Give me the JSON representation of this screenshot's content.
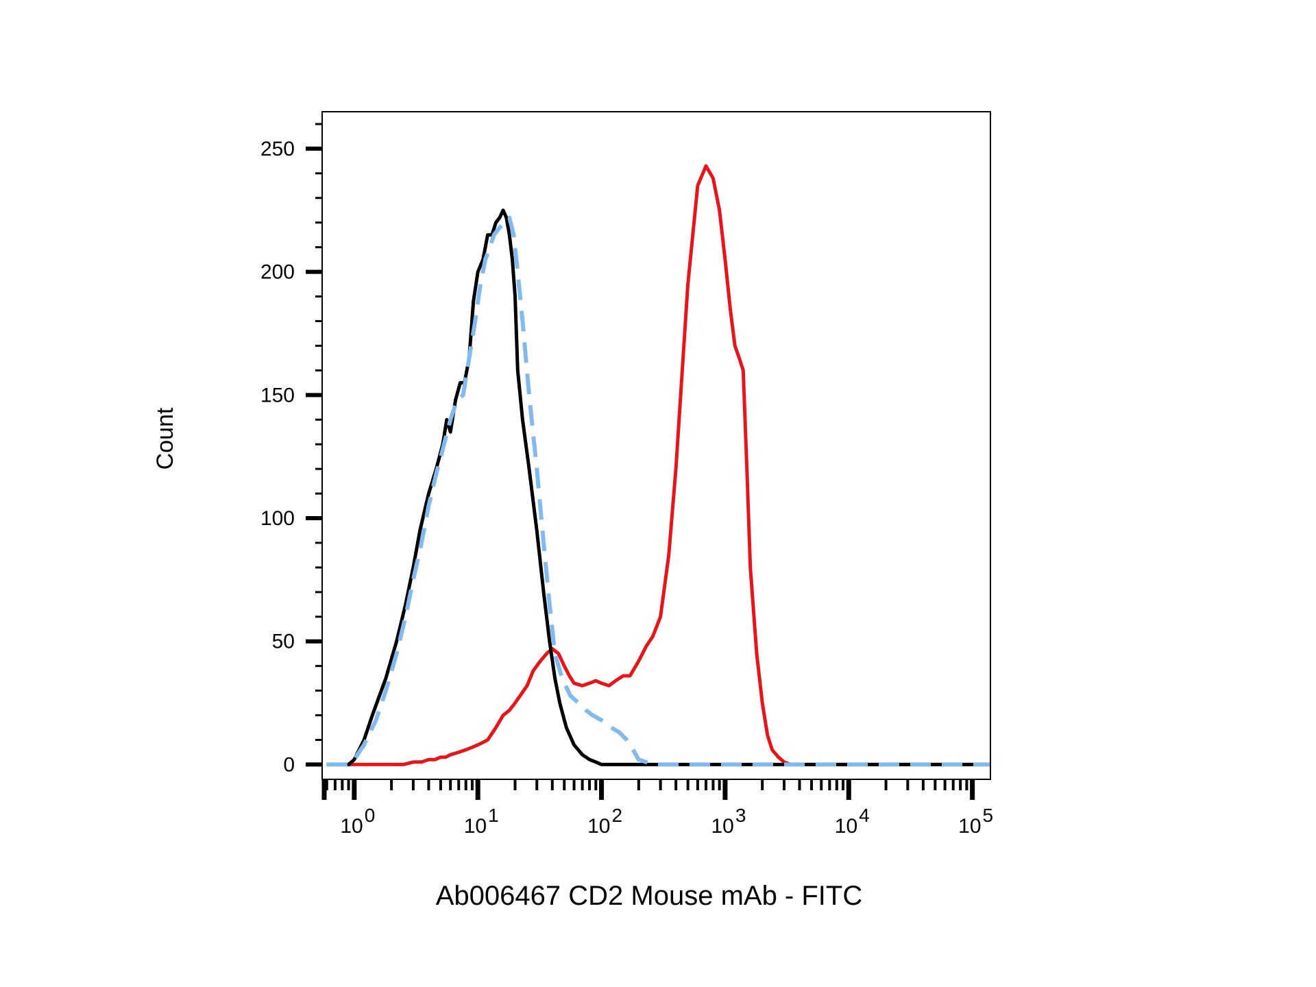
{
  "chart_data": {
    "type": "line",
    "title": "",
    "xlabel": "Ab006467 CD2 Mouse mAb - FITC",
    "ylabel": "Count",
    "x_scale": "log",
    "xlim": [
      0.55,
      140000
    ],
    "ylim": [
      -6,
      265
    ],
    "y_ticks": [
      0,
      50,
      100,
      150,
      200,
      250
    ],
    "x_ticks": [
      {
        "value": 1,
        "base": "10",
        "exp": "0"
      },
      {
        "value": 10,
        "base": "10",
        "exp": "1"
      },
      {
        "value": 100,
        "base": "10",
        "exp": "2"
      },
      {
        "value": 1000,
        "base": "10",
        "exp": "3"
      },
      {
        "value": 10000,
        "base": "10",
        "exp": "4"
      },
      {
        "value": 100000,
        "base": "10",
        "exp": "5"
      }
    ],
    "grid": false,
    "legend": "none",
    "series": [
      {
        "color": "#000000",
        "style": "solid",
        "x": [
          0.6,
          0.9,
          1.0,
          1.2,
          1.4,
          1.8,
          2.2,
          2.6,
          3.0,
          3.4,
          4.0,
          4.6,
          5.2,
          5.6,
          6.0,
          6.6,
          7.2,
          7.8,
          8.5,
          9.2,
          10,
          11,
          12,
          13,
          14,
          15,
          16,
          17,
          18,
          19,
          20,
          21,
          23,
          26,
          30,
          34,
          38,
          42,
          46,
          52,
          60,
          70,
          80,
          90,
          100,
          110,
          120,
          140,
          200,
          400,
          1000,
          10000,
          140000
        ],
        "y": [
          0,
          0,
          2,
          10,
          20,
          35,
          50,
          65,
          80,
          95,
          110,
          120,
          130,
          140,
          135,
          148,
          155,
          155,
          165,
          188,
          200,
          205,
          215,
          215,
          220,
          222,
          225,
          222,
          215,
          205,
          190,
          160,
          140,
          120,
          95,
          70,
          50,
          35,
          25,
          15,
          8,
          4,
          2,
          1,
          0,
          0,
          0,
          0,
          0,
          0,
          0,
          0,
          0
        ]
      },
      {
        "color": "#82baf0",
        "style": "dashed",
        "x": [
          0.6,
          0.9,
          1.0,
          1.2,
          1.5,
          1.8,
          2.2,
          2.6,
          3.0,
          3.5,
          4.0,
          4.6,
          5.2,
          6.0,
          6.8,
          7.6,
          8.5,
          9.5,
          10.5,
          11.5,
          12.5,
          13.5,
          15,
          16.5,
          18,
          19.5,
          21,
          23,
          26,
          30,
          34,
          38,
          42,
          48,
          56,
          65,
          75,
          85,
          100,
          120,
          140,
          160,
          180,
          200,
          230,
          260,
          300,
          400,
          1000,
          10000,
          140000
        ],
        "y": [
          0,
          0,
          2,
          8,
          18,
          30,
          45,
          60,
          75,
          90,
          105,
          118,
          128,
          140,
          148,
          150,
          165,
          180,
          195,
          205,
          210,
          215,
          218,
          220,
          222,
          215,
          200,
          180,
          150,
          120,
          90,
          65,
          45,
          35,
          28,
          25,
          22,
          20,
          18,
          15,
          13,
          10,
          6,
          2,
          1,
          0,
          0,
          0,
          0,
          0,
          0
        ]
      },
      {
        "color": "#e8141a",
        "style": "solid",
        "x": [
          0.6,
          1.0,
          1.5,
          2.0,
          2.5,
          3.0,
          3.5,
          4.0,
          4.5,
          5.0,
          5.5,
          6.0,
          7.0,
          8.0,
          9.0,
          10,
          11,
          12,
          14,
          16,
          18,
          20,
          22,
          25,
          28,
          32,
          36,
          40,
          45,
          50,
          55,
          60,
          70,
          80,
          90,
          100,
          115,
          130,
          150,
          170,
          200,
          230,
          260,
          300,
          350,
          400,
          450,
          500,
          600,
          700,
          800,
          900,
          1000,
          1100,
          1200,
          1300,
          1400,
          1500,
          1600,
          1800,
          2000,
          2200,
          2400,
          2700,
          3000,
          3400,
          3800,
          4200,
          4600,
          5000,
          5500,
          6000,
          6500,
          7000,
          8000,
          10000,
          20000,
          50000,
          140000
        ],
        "y": [
          0,
          0,
          0,
          0,
          0,
          1,
          1,
          2,
          2,
          3,
          3,
          4,
          5,
          6,
          7,
          8,
          9,
          10,
          15,
          20,
          22,
          25,
          28,
          32,
          38,
          42,
          45,
          47,
          45,
          40,
          36,
          33,
          32,
          33,
          34,
          33,
          32,
          34,
          36,
          36,
          42,
          48,
          52,
          60,
          85,
          120,
          160,
          195,
          235,
          243,
          238,
          225,
          205,
          185,
          170,
          165,
          160,
          120,
          80,
          45,
          25,
          12,
          6,
          3,
          1,
          0,
          0,
          0,
          0,
          0,
          0,
          0,
          0,
          0,
          0,
          0,
          0,
          0,
          0
        ]
      }
    ]
  }
}
